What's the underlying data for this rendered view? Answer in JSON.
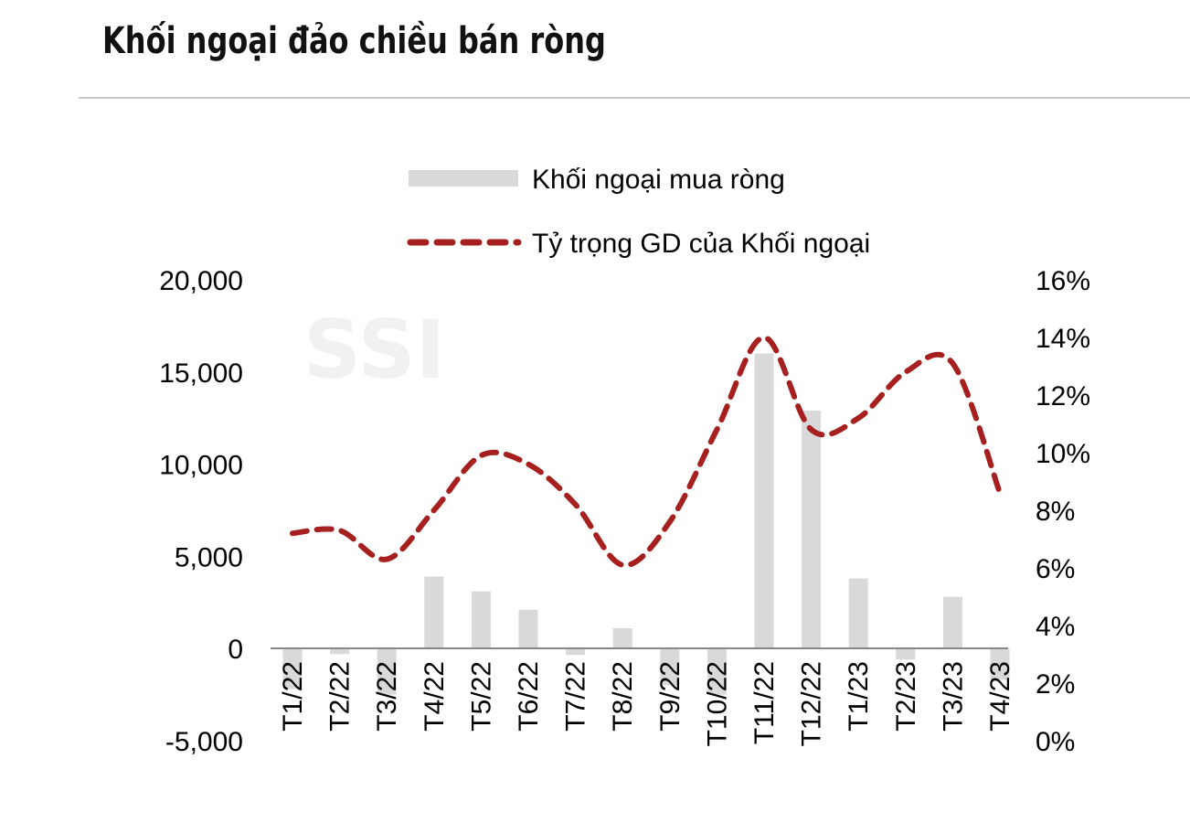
{
  "title": "Khối ngoại đảo chiều bán ròng",
  "watermark": "SSI",
  "chart_data": {
    "type": "bar",
    "categories": [
      "T1/22",
      "T2/22",
      "T3/22",
      "T4/22",
      "T5/22",
      "T6/22",
      "T7/22",
      "T8/22",
      "T9/22",
      "T10/22",
      "T11/22",
      "T12/22",
      "T1/23",
      "T2/23",
      "T3/23",
      "T4/23"
    ],
    "series": [
      {
        "name": "Khối ngoại mua ròng",
        "type": "bar",
        "axis": "left",
        "values": [
          -2200,
          -300,
          -2500,
          3900,
          3100,
          2100,
          -350,
          1100,
          -2000,
          -2500,
          16000,
          12900,
          3800,
          -600,
          2800,
          -1700
        ]
      },
      {
        "name": "Tỷ trọng GD của Khối ngoại",
        "type": "line",
        "axis": "right",
        "values": [
          7.2,
          7.3,
          6.3,
          8.0,
          9.9,
          9.6,
          8.2,
          6.1,
          7.6,
          10.8,
          14.0,
          10.8,
          11.2,
          12.8,
          13.1,
          8.6
        ]
      }
    ],
    "y_left": {
      "ylim": [
        -5000,
        20000
      ],
      "ticks": [
        "-5,000",
        "0",
        "5,000",
        "10,000",
        "15,000",
        "20,000"
      ]
    },
    "y_right": {
      "ylim": [
        0,
        16
      ],
      "ticks": [
        "0%",
        "2%",
        "4%",
        "6%",
        "8%",
        "10%",
        "12%",
        "14%",
        "16%"
      ]
    },
    "legend_position": "top",
    "colors": {
      "bar": "#d9d9d9",
      "line": "#a6201f"
    },
    "grid": false
  }
}
